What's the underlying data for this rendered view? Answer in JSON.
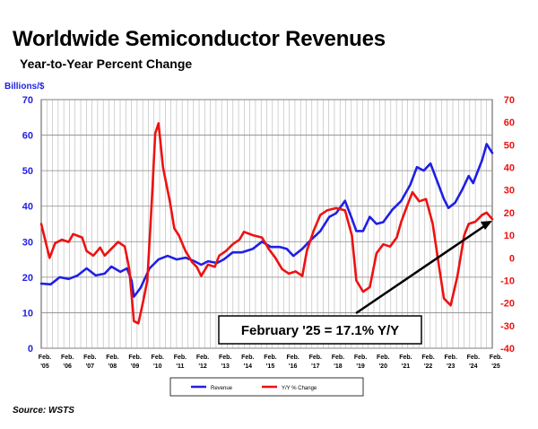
{
  "title": "Worldwide Semiconductor Revenues",
  "subtitle": "Year-to-Year Percent Change",
  "source": "Source: WSTS",
  "colors": {
    "revenue": "#1f1fe6",
    "yy": "#ee1111",
    "left_axis": "#1f1fe6",
    "right_axis": "#ee1111"
  },
  "chart_data": {
    "type": "line",
    "ylabel": "Billions/$",
    "y_left_lim": [
      0,
      70
    ],
    "y_left_ticks": [
      "0",
      "10",
      "20",
      "30",
      "40",
      "50",
      "60",
      "70"
    ],
    "y_right_lim": [
      -40,
      70
    ],
    "y_right_ticks": [
      "-40",
      "-30",
      "-20",
      "-10",
      "0",
      "10",
      "20",
      "30",
      "40",
      "50",
      "60",
      "70"
    ],
    "x_tick_labels": [
      {
        "line1": "Feb.",
        "line2": "'05"
      },
      {
        "line1": "Feb.",
        "line2": "'06"
      },
      {
        "line1": "Feb.",
        "line2": "'07"
      },
      {
        "line1": "Feb.",
        "line2": "'08"
      },
      {
        "line1": "Feb.",
        "line2": "'09"
      },
      {
        "line1": "Feb.",
        "line2": "'10"
      },
      {
        "line1": "Feb.",
        "line2": "'11"
      },
      {
        "line1": "Feb.",
        "line2": "'12"
      },
      {
        "line1": "Feb.",
        "line2": "'13"
      },
      {
        "line1": "Feb.",
        "line2": "'14"
      },
      {
        "line1": "Feb.",
        "line2": "'15"
      },
      {
        "line1": "Feb.",
        "line2": "'16"
      },
      {
        "line1": "Feb.",
        "line2": "'17"
      },
      {
        "line1": "Feb.",
        "line2": "'18"
      },
      {
        "line1": "Feb.",
        "line2": "'19"
      },
      {
        "line1": "Feb.",
        "line2": "'20"
      },
      {
        "line1": "Feb.",
        "line2": "'21"
      },
      {
        "line1": "Feb.",
        "line2": "'22"
      },
      {
        "line1": "Feb.",
        "line2": "'23"
      },
      {
        "line1": "Feb.",
        "line2": "'24"
      },
      {
        "line1": "Feb.",
        "line2": "'25"
      }
    ],
    "x_lim": [
      2005.08,
      2025.15
    ],
    "grid": true,
    "legend_position": "bottom",
    "annotation": "February '25 = 17.1% Y/Y",
    "series": [
      {
        "name": "Revenue",
        "axis": "left",
        "color": "#1f1fe6",
        "points": [
          [
            2005.08,
            18.2
          ],
          [
            2005.5,
            18.0
          ],
          [
            2005.9,
            20.0
          ],
          [
            2006.3,
            19.5
          ],
          [
            2006.7,
            20.5
          ],
          [
            2007.1,
            22.5
          ],
          [
            2007.5,
            20.5
          ],
          [
            2007.9,
            21.0
          ],
          [
            2008.2,
            23.0
          ],
          [
            2008.6,
            21.5
          ],
          [
            2008.9,
            22.5
          ],
          [
            2009.1,
            19.0
          ],
          [
            2009.2,
            14.5
          ],
          [
            2009.5,
            17.0
          ],
          [
            2009.9,
            22.5
          ],
          [
            2010.3,
            25.0
          ],
          [
            2010.7,
            26.0
          ],
          [
            2011.1,
            25.0
          ],
          [
            2011.5,
            25.5
          ],
          [
            2011.9,
            24.5
          ],
          [
            2012.2,
            23.5
          ],
          [
            2012.5,
            24.5
          ],
          [
            2012.9,
            24.0
          ],
          [
            2013.2,
            25.0
          ],
          [
            2013.6,
            27.0
          ],
          [
            2014.0,
            27.0
          ],
          [
            2014.5,
            28.0
          ],
          [
            2014.9,
            30.0
          ],
          [
            2015.3,
            28.5
          ],
          [
            2015.7,
            28.5
          ],
          [
            2016.0,
            28.0
          ],
          [
            2016.3,
            26.0
          ],
          [
            2016.7,
            28.0
          ],
          [
            2017.0,
            30.0
          ],
          [
            2017.5,
            33.0
          ],
          [
            2017.9,
            37.0
          ],
          [
            2018.2,
            38.0
          ],
          [
            2018.6,
            41.5
          ],
          [
            2018.9,
            36.5
          ],
          [
            2019.1,
            33.0
          ],
          [
            2019.4,
            33.0
          ],
          [
            2019.7,
            37.0
          ],
          [
            2020.0,
            35.0
          ],
          [
            2020.3,
            35.5
          ],
          [
            2020.7,
            39.0
          ],
          [
            2021.1,
            41.5
          ],
          [
            2021.5,
            46.0
          ],
          [
            2021.8,
            51.0
          ],
          [
            2022.1,
            50.0
          ],
          [
            2022.4,
            52.0
          ],
          [
            2022.7,
            47.0
          ],
          [
            2023.0,
            42.0
          ],
          [
            2023.2,
            39.5
          ],
          [
            2023.5,
            41.0
          ],
          [
            2023.8,
            44.5
          ],
          [
            2024.1,
            48.5
          ],
          [
            2024.3,
            46.5
          ],
          [
            2024.7,
            53.0
          ],
          [
            2024.9,
            57.5
          ],
          [
            2025.15,
            55.0
          ]
        ]
      },
      {
        "name": "Y/Y % Change",
        "axis": "right",
        "color": "#ee1111",
        "points": [
          [
            2005.08,
            15.0
          ],
          [
            2005.25,
            8.0
          ],
          [
            2005.45,
            0.0
          ],
          [
            2005.7,
            6.5
          ],
          [
            2006.0,
            8.0
          ],
          [
            2006.3,
            7.0
          ],
          [
            2006.5,
            10.5
          ],
          [
            2006.9,
            9.0
          ],
          [
            2007.1,
            3.0
          ],
          [
            2007.4,
            1.0
          ],
          [
            2007.7,
            4.5
          ],
          [
            2007.9,
            1.0
          ],
          [
            2008.2,
            4.0
          ],
          [
            2008.5,
            7.0
          ],
          [
            2008.8,
            5.0
          ],
          [
            2009.0,
            -5.0
          ],
          [
            2009.2,
            -28.0
          ],
          [
            2009.4,
            -29.0
          ],
          [
            2009.6,
            -20.0
          ],
          [
            2009.8,
            -10.0
          ],
          [
            2010.0,
            25.0
          ],
          [
            2010.15,
            55.0
          ],
          [
            2010.3,
            59.5
          ],
          [
            2010.5,
            40.0
          ],
          [
            2010.8,
            25.0
          ],
          [
            2011.0,
            13.0
          ],
          [
            2011.2,
            10.0
          ],
          [
            2011.5,
            3.0
          ],
          [
            2011.8,
            -2.0
          ],
          [
            2012.0,
            -4.0
          ],
          [
            2012.2,
            -8.0
          ],
          [
            2012.5,
            -3.0
          ],
          [
            2012.8,
            -4.0
          ],
          [
            2013.0,
            1.0
          ],
          [
            2013.3,
            3.0
          ],
          [
            2013.6,
            6.0
          ],
          [
            2013.9,
            8.0
          ],
          [
            2014.1,
            11.5
          ],
          [
            2014.5,
            10.0
          ],
          [
            2014.9,
            9.0
          ],
          [
            2015.2,
            4.0
          ],
          [
            2015.5,
            0.0
          ],
          [
            2015.8,
            -5.0
          ],
          [
            2016.1,
            -7.0
          ],
          [
            2016.4,
            -6.0
          ],
          [
            2016.7,
            -8.0
          ],
          [
            2016.9,
            3.0
          ],
          [
            2017.2,
            12.0
          ],
          [
            2017.5,
            19.0
          ],
          [
            2017.8,
            21.0
          ],
          [
            2018.2,
            22.0
          ],
          [
            2018.6,
            21.0
          ],
          [
            2018.9,
            10.0
          ],
          [
            2019.1,
            -10.0
          ],
          [
            2019.4,
            -15.0
          ],
          [
            2019.7,
            -13.0
          ],
          [
            2020.0,
            2.0
          ],
          [
            2020.3,
            6.0
          ],
          [
            2020.6,
            5.0
          ],
          [
            2020.9,
            9.0
          ],
          [
            2021.1,
            16.0
          ],
          [
            2021.4,
            24.0
          ],
          [
            2021.6,
            29.0
          ],
          [
            2021.9,
            25.0
          ],
          [
            2022.2,
            26.0
          ],
          [
            2022.5,
            15.0
          ],
          [
            2022.8,
            -5.0
          ],
          [
            2023.0,
            -18.0
          ],
          [
            2023.3,
            -21.0
          ],
          [
            2023.6,
            -8.0
          ],
          [
            2023.9,
            10.0
          ],
          [
            2024.1,
            15.0
          ],
          [
            2024.4,
            16.0
          ],
          [
            2024.7,
            19.0
          ],
          [
            2024.9,
            20.0
          ],
          [
            2025.15,
            17.1
          ]
        ]
      }
    ]
  }
}
